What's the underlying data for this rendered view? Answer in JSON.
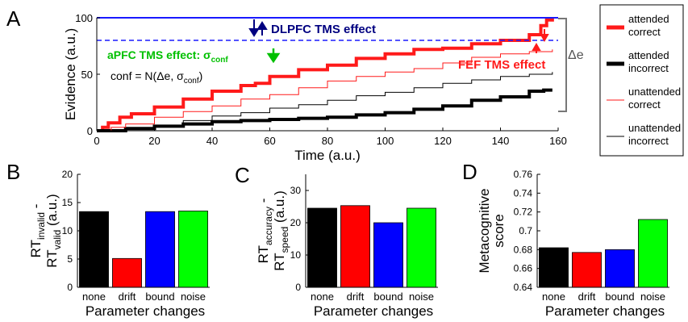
{
  "panels": {
    "A": {
      "letter": "A"
    },
    "B": {
      "letter": "B"
    },
    "C": {
      "letter": "C"
    },
    "D": {
      "letter": "D"
    }
  },
  "chart_data": [
    {
      "type": "line",
      "panel": "A",
      "xlabel": "Time (a.u.)",
      "ylabel": "Evidence (a.u.)",
      "xlim": [
        0,
        160
      ],
      "ylim": [
        0,
        100
      ],
      "xticks": [
        "0",
        "20",
        "40",
        "60",
        "80",
        "100",
        "120",
        "140",
        "160"
      ],
      "yticks": [
        "0",
        "50",
        "100"
      ],
      "annotations": {
        "dlpfc": "DLPFC TMS effect",
        "apfc_prefix": "aPFC TMS effect: σ",
        "apfc_sub": "conf",
        "conf_prefix": "conf = N(Δe, σ",
        "conf_sub": "conf",
        "conf_suffix": ")",
        "fef": "FEF TMS effect",
        "delta_e": "Δe"
      },
      "reference_lines": [
        {
          "y": 100,
          "style": "solid",
          "color": "#1a1aff"
        },
        {
          "y": 80,
          "style": "dashed",
          "color": "#1a1aff"
        }
      ],
      "legend": {
        "placement": "right",
        "entries": [
          {
            "label1": "attended",
            "label2": "correct",
            "color": "#ff1a1a",
            "width": "thick"
          },
          {
            "label1": "attended",
            "label2": "incorrect",
            "color": "#000000",
            "width": "thick"
          },
          {
            "label1": "unattended",
            "label2": "correct",
            "color": "#ff1a1a",
            "width": "thin"
          },
          {
            "label1": "unattended",
            "label2": "incorrect",
            "color": "#000000",
            "width": "thin"
          }
        ]
      },
      "series": [
        {
          "color": "#ff1a1a",
          "width": "thick",
          "x": [
            0,
            2,
            4,
            8,
            12,
            20,
            30,
            40,
            50,
            55,
            60,
            70,
            80,
            90,
            100,
            110,
            120,
            130,
            140,
            150,
            154,
            156,
            158
          ],
          "y": [
            0,
            3,
            7,
            12,
            15,
            21,
            28,
            35,
            40,
            42,
            48,
            54,
            58,
            64,
            68,
            72,
            73,
            77,
            80,
            85,
            93,
            98,
            100
          ]
        },
        {
          "color": "#000000",
          "width": "thick",
          "x": [
            0,
            10,
            20,
            30,
            40,
            50,
            60,
            70,
            80,
            90,
            100,
            110,
            120,
            130,
            140,
            150,
            155,
            158
          ],
          "y": [
            0,
            2,
            4,
            6,
            8,
            9,
            10,
            11,
            12,
            14,
            16,
            19,
            22,
            27,
            30,
            35,
            36,
            36
          ]
        },
        {
          "color": "#ff1a1a",
          "width": "thin",
          "x": [
            0,
            5,
            10,
            20,
            30,
            40,
            50,
            60,
            70,
            80,
            90,
            100,
            110,
            120,
            130,
            140,
            150,
            158
          ],
          "y": [
            0,
            3,
            6,
            12,
            17,
            22,
            28,
            32,
            38,
            44,
            48,
            52,
            55,
            60,
            65,
            68,
            70,
            72
          ]
        },
        {
          "color": "#000000",
          "width": "thin",
          "x": [
            0,
            10,
            20,
            30,
            40,
            50,
            60,
            70,
            80,
            90,
            100,
            110,
            120,
            130,
            140,
            150,
            158
          ],
          "y": [
            0,
            2,
            5,
            9,
            13,
            16,
            20,
            23,
            27,
            31,
            34,
            38,
            42,
            45,
            48,
            50,
            52
          ]
        }
      ]
    },
    {
      "type": "bar",
      "panel": "B",
      "categories": [
        "none",
        "drift",
        "bound",
        "noise"
      ],
      "values": [
        13.4,
        5.1,
        13.4,
        13.5
      ],
      "colors": [
        "#000000",
        "#ff0000",
        "#0000ff",
        "#00ff00"
      ],
      "xlabel": "Parameter changes",
      "ylabel_parts": {
        "rt1": "RT",
        "sub1": "invalid",
        "minus": "-",
        "rt2": "RT",
        "sub2": "valid",
        "unit": "(a.u.)"
      },
      "ylim": [
        0,
        20
      ],
      "yticks": [
        "0",
        "5",
        "10",
        "15",
        "20"
      ],
      "ytick_values": [
        0,
        5,
        10,
        15,
        20
      ]
    },
    {
      "type": "bar",
      "panel": "C",
      "categories": [
        "none",
        "drift",
        "bound",
        "noise"
      ],
      "values": [
        24.5,
        25.3,
        20.0,
        24.5
      ],
      "colors": [
        "#000000",
        "#ff0000",
        "#0000ff",
        "#00ff00"
      ],
      "xlabel": "Parameter changes",
      "ylabel_parts": {
        "rt1": "RT",
        "sub1": "accuracy",
        "minus": "-",
        "rt2": "RT",
        "sub2": "speed",
        "unit": "(a.u.)"
      },
      "ylim": [
        0,
        35
      ],
      "yticks": [
        "0",
        "10",
        "20",
        "30"
      ],
      "ytick_values": [
        0,
        10,
        20,
        30
      ]
    },
    {
      "type": "bar",
      "panel": "D",
      "categories": [
        "none",
        "drift",
        "bound",
        "noise"
      ],
      "values": [
        0.682,
        0.677,
        0.68,
        0.712
      ],
      "colors": [
        "#000000",
        "#ff0000",
        "#0000ff",
        "#00ff00"
      ],
      "xlabel": "Parameter changes",
      "ylabel_parts": {
        "line1": "Metacognitive",
        "line2": "score"
      },
      "ylim": [
        0.64,
        0.76
      ],
      "yticks": [
        "0.64",
        "0.66",
        "0.68",
        "0.7",
        "0.72",
        "0.74",
        "0.76"
      ],
      "ytick_values": [
        0.64,
        0.66,
        0.68,
        0.7,
        0.72,
        0.74,
        0.76
      ]
    }
  ]
}
